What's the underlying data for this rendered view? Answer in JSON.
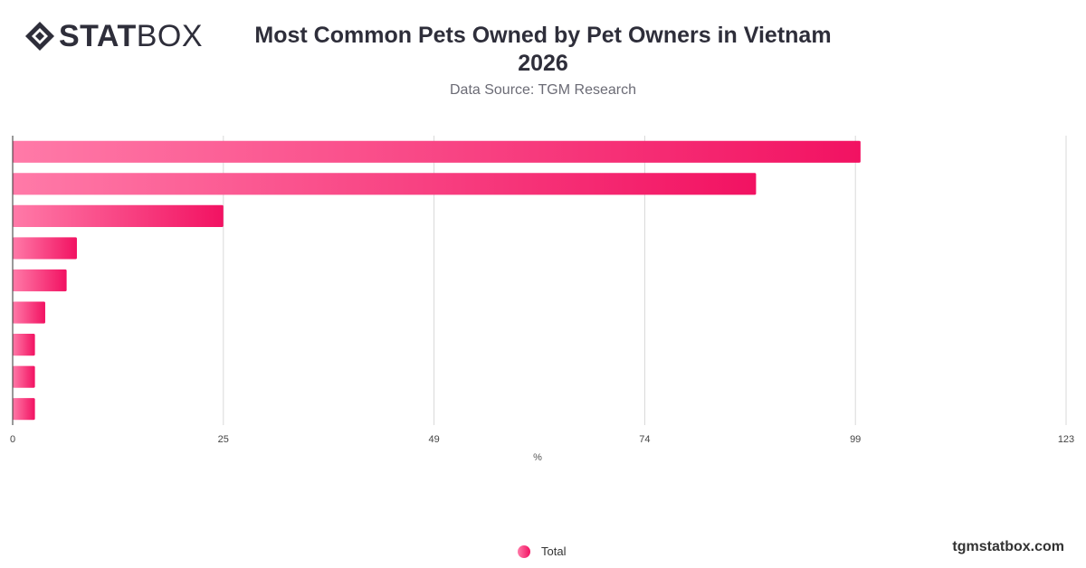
{
  "header": {
    "logo_icon": "statbox-diamond-logo",
    "logo_bold": "STAT",
    "logo_light": "BOX",
    "title_line1": "Most Common Pets Owned by Pet Owners in Vietnam",
    "title_line2": "2026",
    "subtitle": "Data Source: TGM Research"
  },
  "legend": {
    "label": "Total",
    "color_start": "#ff7aa8",
    "color_end": "#f21262"
  },
  "footer": {
    "brand": "tgmstatbox.com"
  },
  "chart_data": {
    "type": "bar",
    "orientation": "horizontal",
    "title": "Most Common Pets Owned by Pet Owners in Vietnam 2026",
    "subtitle": "Data Source: TGM Research",
    "xlabel": "%",
    "ylabel": "",
    "xlim": [
      0,
      123
    ],
    "x_ticks": [
      "0",
      "25",
      "49",
      "74",
      "99",
      "123"
    ],
    "x_tick_values": [
      0,
      24.6,
      49.2,
      73.8,
      98.4,
      123
    ],
    "categories": [
      "",
      "",
      "",
      "",
      "",
      "",
      "",
      "",
      ""
    ],
    "series": [
      {
        "name": "Total",
        "values": [
          99,
          86.8,
          24.6,
          7.5,
          6.3,
          3.8,
          2.6,
          2.6,
          2.6
        ]
      }
    ],
    "grid": true,
    "legend_position": "bottom-center",
    "colors": {
      "bar_start": "#ff7aa8",
      "bar_end": "#f21262",
      "grid": "#d9d9d9",
      "axis": "#333333"
    }
  }
}
